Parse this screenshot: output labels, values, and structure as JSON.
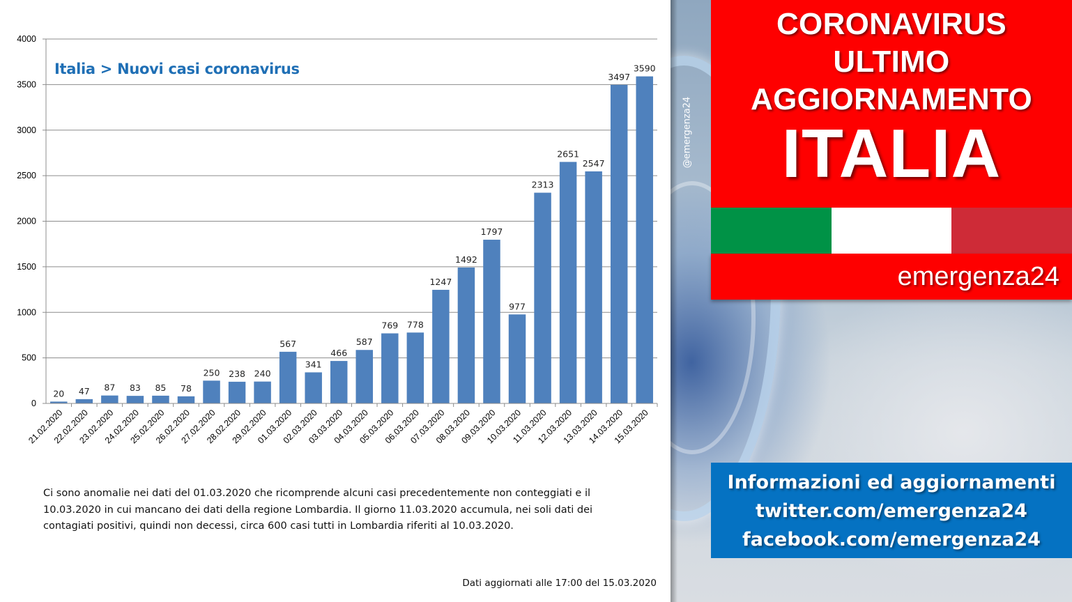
{
  "chart_data": {
    "type": "bar",
    "title": "Italia > Nuovi casi coronavirus",
    "xlabel": "",
    "ylabel": "",
    "ylim": [
      0,
      4000
    ],
    "yticks": [
      0,
      500,
      1000,
      1500,
      2000,
      2500,
      3000,
      3500,
      4000
    ],
    "grid": true,
    "bar_color": "#4f81bd",
    "categories": [
      "21.02.2020",
      "22.02.2020",
      "23.02.2020",
      "24.02.2020",
      "25.02.2020",
      "26.02.2020",
      "27.02.2020",
      "28.02.2020",
      "29.02.2020",
      "01.03.2020",
      "02.03.2020",
      "03.03.2020",
      "04.03.2020",
      "05.03.2020",
      "06.03.2020",
      "07.03.2020",
      "08.03.2020",
      "09.03.2020",
      "10.03.2020",
      "11.03.2020",
      "12.03.2020",
      "13.03.2020",
      "14.03.2020",
      "15.03.2020"
    ],
    "values": [
      20,
      47,
      87,
      83,
      85,
      78,
      250,
      238,
      240,
      567,
      341,
      466,
      587,
      769,
      778,
      1247,
      1492,
      1797,
      977,
      2313,
      2651,
      2547,
      3497,
      3590
    ]
  },
  "note_lines": [
    "Ci sono anomalie nei dati del 01.03.2020 che ricomprende alcuni casi precedentemente non conteggiati e il",
    "10.03.2020 in cui mancano dei dati della regione Lombardia. Il giorno 11.03.2020 accumula, nei soli dati dei",
    "contagiati positivi, quindi non decessi, circa 600 casi tutti in Lombardia riferiti al 10.03.2020."
  ],
  "updated": "Dati aggiornati alle 17:00 del 15.03.2020",
  "side": {
    "handle": "@emergenza24",
    "hero_line1": "CORONAVIRUS",
    "hero_line2": "ULTIMO",
    "hero_line3": "AGGIORNAMENTO",
    "hero_big": "ITALIA",
    "brand": "emergenza24",
    "info_line1": "Informazioni ed aggiornamenti",
    "info_line2": "twitter.com/emergenza24",
    "info_line3": "facebook.com/emergenza24",
    "flag_colors": [
      "#009246",
      "#ffffff",
      "#ce2b37"
    ],
    "hero_color": "#fe0000",
    "info_color": "#0572c2"
  }
}
